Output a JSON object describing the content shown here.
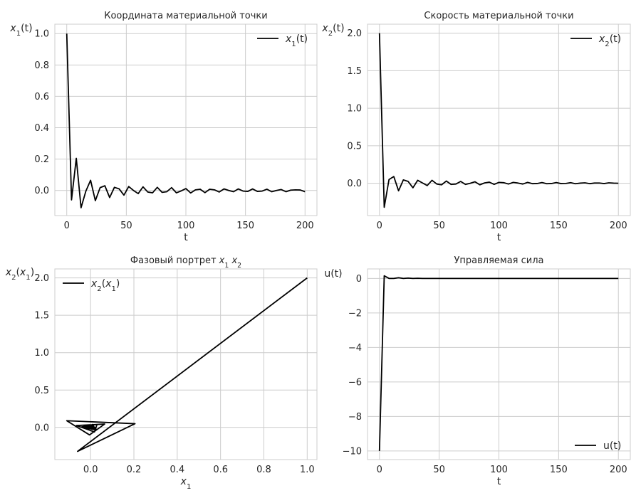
{
  "chart_data": [
    {
      "id": "p1",
      "type": "line",
      "title": "Координата материальной точки",
      "xlabel": "t",
      "ylabel": "x1(t)",
      "ylabel_parts": [
        {
          "t": "x",
          "i": true
        },
        {
          "t": "1",
          "sub": true
        },
        {
          "t": "(t)"
        }
      ],
      "xlim": [
        -10,
        210
      ],
      "ylim": [
        -0.16,
        1.06
      ],
      "xticks": [
        0,
        50,
        100,
        150,
        200
      ],
      "xtick_labels": [
        "0",
        "50",
        "100",
        "150",
        "200"
      ],
      "yticks": [
        0.0,
        0.2,
        0.4,
        0.6,
        0.8,
        1.0
      ],
      "ytick_labels": [
        "0.0",
        "0.2",
        "0.4",
        "0.6",
        "0.8",
        "1.0"
      ],
      "legend": {
        "loc": "top-right",
        "label": "x1(t)",
        "parts": [
          {
            "t": "x",
            "i": true
          },
          {
            "t": "1",
            "sub": true
          },
          {
            "t": "(t)"
          }
        ]
      },
      "series": [
        {
          "name": "x1(t)",
          "x": [
            0,
            4,
            8,
            12,
            16,
            20,
            24,
            28,
            32,
            36,
            40,
            44,
            48,
            52,
            56,
            60,
            64,
            68,
            72,
            76,
            80,
            84,
            88,
            92,
            96,
            100,
            104,
            108,
            112,
            116,
            120,
            124,
            128,
            132,
            136,
            140,
            144,
            148,
            152,
            156,
            160,
            164,
            168,
            172,
            176,
            180,
            184,
            188,
            192,
            196,
            200
          ],
          "y": [
            1.0,
            -0.06,
            0.205,
            -0.11,
            -0.005,
            0.065,
            -0.065,
            0.018,
            0.03,
            -0.045,
            0.02,
            0.01,
            -0.03,
            0.025,
            0.0,
            -0.02,
            0.023,
            -0.01,
            -0.015,
            0.02,
            -0.012,
            -0.008,
            0.018,
            -0.015,
            -0.003,
            0.012,
            -0.016,
            0.004,
            0.008,
            -0.014,
            0.008,
            0.004,
            -0.01,
            0.01,
            0.0,
            -0.008,
            0.01,
            -0.004,
            -0.006,
            0.01,
            -0.006,
            -0.004,
            0.008,
            -0.008,
            0.0,
            0.006,
            -0.008,
            0.002,
            0.004,
            0.003,
            -0.008
          ]
        }
      ]
    },
    {
      "id": "p2",
      "type": "line",
      "title": "Скорость материальной точки",
      "xlabel": "t",
      "ylabel": "x2(t)",
      "ylabel_parts": [
        {
          "t": "x",
          "i": true
        },
        {
          "t": "2",
          "sub": true
        },
        {
          "t": "(t)"
        }
      ],
      "xlim": [
        -10,
        210
      ],
      "ylim": [
        -0.43,
        2.12
      ],
      "xticks": [
        0,
        50,
        100,
        150,
        200
      ],
      "xtick_labels": [
        "0",
        "50",
        "100",
        "150",
        "200"
      ],
      "yticks": [
        0.0,
        0.5,
        1.0,
        1.5,
        2.0
      ],
      "ytick_labels": [
        "0.0",
        "0.5",
        "1.0",
        "1.5",
        "2.0"
      ],
      "legend": {
        "loc": "top-right",
        "label": "x2(t)",
        "parts": [
          {
            "t": "x",
            "i": true
          },
          {
            "t": "2",
            "sub": true
          },
          {
            "t": "(t)"
          }
        ]
      },
      "series": [
        {
          "name": "x2(t)",
          "x": [
            0,
            4,
            8,
            12,
            16,
            20,
            24,
            28,
            32,
            36,
            40,
            44,
            48,
            52,
            56,
            60,
            64,
            68,
            72,
            76,
            80,
            84,
            88,
            92,
            96,
            100,
            104,
            108,
            112,
            116,
            120,
            124,
            128,
            132,
            136,
            140,
            144,
            148,
            152,
            156,
            160,
            164,
            168,
            172,
            176,
            180,
            184,
            188,
            192,
            196,
            200
          ],
          "y": [
            2.0,
            -0.32,
            0.05,
            0.09,
            -0.1,
            0.045,
            0.025,
            -0.06,
            0.04,
            0.005,
            -0.03,
            0.04,
            -0.01,
            -0.02,
            0.03,
            -0.015,
            -0.01,
            0.025,
            -0.015,
            0.0,
            0.02,
            -0.02,
            0.005,
            0.015,
            -0.015,
            0.012,
            0.008,
            -0.01,
            0.012,
            0.003,
            -0.01,
            0.012,
            -0.005,
            -0.003,
            0.01,
            -0.006,
            -0.003,
            0.01,
            -0.004,
            -0.002,
            0.008,
            -0.006,
            0.002,
            0.006,
            -0.005,
            0.003,
            0.004,
            -0.004,
            0.006,
            0.002,
            0.0
          ]
        }
      ]
    },
    {
      "id": "p3",
      "type": "line",
      "title": "Фазовый портрет x1 x2",
      "title_parts": [
        {
          "t": "Фазовый портрет "
        },
        {
          "t": "x",
          "i": true
        },
        {
          "t": "1",
          "sub": true
        },
        {
          "t": " "
        },
        {
          "t": "x",
          "i": true
        },
        {
          "t": "2",
          "sub": true
        }
      ],
      "xlabel": "x1",
      "xlabel_parts": [
        {
          "t": "x",
          "i": true
        },
        {
          "t": "1",
          "sub": true
        }
      ],
      "ylabel": "x2(x1)",
      "ylabel_parts": [
        {
          "t": "x",
          "i": true
        },
        {
          "t": "2",
          "sub": true
        },
        {
          "t": "("
        },
        {
          "t": "x",
          "i": true
        },
        {
          "t": "1",
          "sub": true
        },
        {
          "t": ")"
        }
      ],
      "xlim": [
        -0.165,
        1.045
      ],
      "ylim": [
        -0.43,
        2.12
      ],
      "xticks": [
        0.0,
        0.2,
        0.4,
        0.6,
        0.8,
        1.0
      ],
      "xtick_labels": [
        "0.0",
        "0.2",
        "0.4",
        "0.6",
        "0.8",
        "1.0"
      ],
      "yticks": [
        0.0,
        0.5,
        1.0,
        1.5,
        2.0
      ],
      "ytick_labels": [
        "0.0",
        "0.5",
        "1.0",
        "1.5",
        "2.0"
      ],
      "legend": {
        "loc": "top-left",
        "label": "x2(x1)",
        "parts": [
          {
            "t": "x",
            "i": true
          },
          {
            "t": "2",
            "sub": true
          },
          {
            "t": "("
          },
          {
            "t": "x",
            "i": true
          },
          {
            "t": "1",
            "sub": true
          },
          {
            "t": ")"
          }
        ]
      },
      "series": [
        {
          "name": "x2(x1)",
          "x": [
            1.0,
            -0.06,
            0.205,
            -0.11,
            -0.005,
            0.065,
            -0.065,
            0.018,
            0.03,
            -0.045,
            0.02,
            0.01,
            -0.03,
            0.025,
            0.0,
            -0.02,
            0.023,
            -0.01,
            -0.015,
            0.02,
            -0.012,
            -0.008,
            0.018,
            -0.015,
            -0.003,
            0.012,
            -0.016,
            0.004,
            0.008,
            -0.014,
            0.008,
            0.004,
            -0.01,
            0.01,
            0.0,
            -0.008,
            0.01,
            -0.004,
            -0.006,
            0.01,
            -0.006,
            -0.004,
            0.008,
            -0.008,
            0.0,
            0.006,
            -0.008,
            0.002,
            0.004,
            0.003,
            -0.008
          ],
          "y": [
            2.0,
            -0.32,
            0.05,
            0.09,
            -0.1,
            0.045,
            0.025,
            -0.06,
            0.04,
            0.005,
            -0.03,
            0.04,
            -0.01,
            -0.02,
            0.03,
            -0.015,
            -0.01,
            0.025,
            -0.015,
            0.0,
            0.02,
            -0.02,
            0.005,
            0.015,
            -0.015,
            0.012,
            0.008,
            -0.01,
            0.012,
            0.003,
            -0.01,
            0.012,
            -0.005,
            -0.003,
            0.01,
            -0.006,
            -0.003,
            0.01,
            -0.004,
            -0.002,
            0.008,
            -0.006,
            0.002,
            0.006,
            -0.005,
            0.003,
            0.004,
            -0.004,
            0.006,
            0.002,
            0.0
          ]
        }
      ]
    },
    {
      "id": "p4",
      "type": "line",
      "title": "Управляемая сила",
      "xlabel": "t",
      "ylabel": "u(t)",
      "ylabel_parts": [
        {
          "t": "u(t)"
        }
      ],
      "xlim": [
        -10,
        210
      ],
      "ylim": [
        -10.5,
        0.55
      ],
      "xticks": [
        0,
        50,
        100,
        150,
        200
      ],
      "xtick_labels": [
        "0",
        "50",
        "100",
        "150",
        "200"
      ],
      "yticks": [
        -10,
        -8,
        -6,
        -4,
        -2,
        0
      ],
      "ytick_labels": [
        "−10",
        "−8",
        "−6",
        "−4",
        "−2",
        "0"
      ],
      "legend": {
        "loc": "bottom-right",
        "label": "u(t)",
        "parts": [
          {
            "t": "u(t)"
          }
        ]
      },
      "series": [
        {
          "name": "u(t)",
          "x": [
            0,
            4,
            8,
            12,
            16,
            20,
            24,
            28,
            32,
            36,
            40,
            50,
            60,
            80,
            100,
            120,
            140,
            160,
            180,
            200
          ],
          "y": [
            -10.0,
            0.15,
            0.0,
            0.0,
            0.04,
            0.0,
            0.02,
            0.0,
            0.01,
            0.0,
            0.0,
            0.0,
            0.0,
            0.0,
            0.0,
            0.0,
            0.0,
            0.0,
            0.0,
            0.0
          ]
        }
      ]
    }
  ]
}
